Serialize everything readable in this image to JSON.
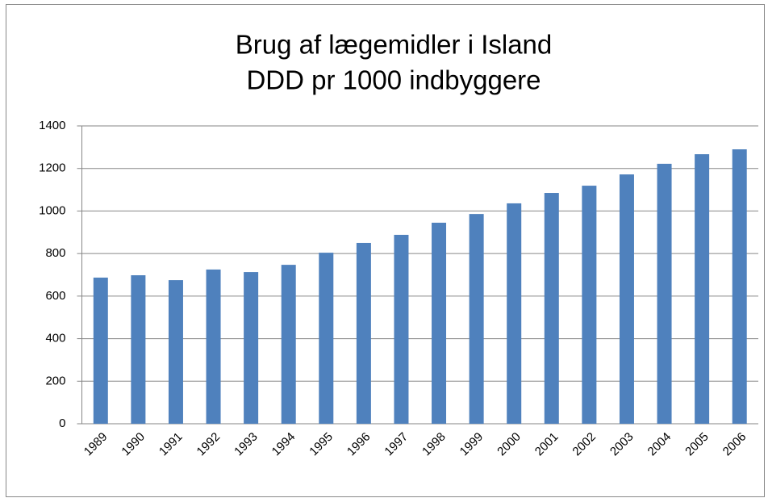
{
  "chart_data": {
    "type": "bar",
    "title": [
      "Brug af lægemidler i Island",
      "DDD pr 1000 indbyggere"
    ],
    "categories": [
      "1989",
      "1990",
      "1991",
      "1992",
      "1993",
      "1994",
      "1995",
      "1996",
      "1997",
      "1998",
      "1999",
      "2000",
      "2001",
      "2002",
      "2003",
      "2004",
      "2005",
      "2006"
    ],
    "values": [
      687,
      698,
      675,
      725,
      713,
      747,
      804,
      850,
      888,
      945,
      986,
      1036,
      1085,
      1119,
      1172,
      1222,
      1267,
      1290
    ],
    "color": "#4f81bd",
    "ylim": [
      0,
      1400
    ],
    "yticks": [
      0,
      200,
      400,
      600,
      800,
      1000,
      1200,
      1400
    ],
    "grid": true
  }
}
